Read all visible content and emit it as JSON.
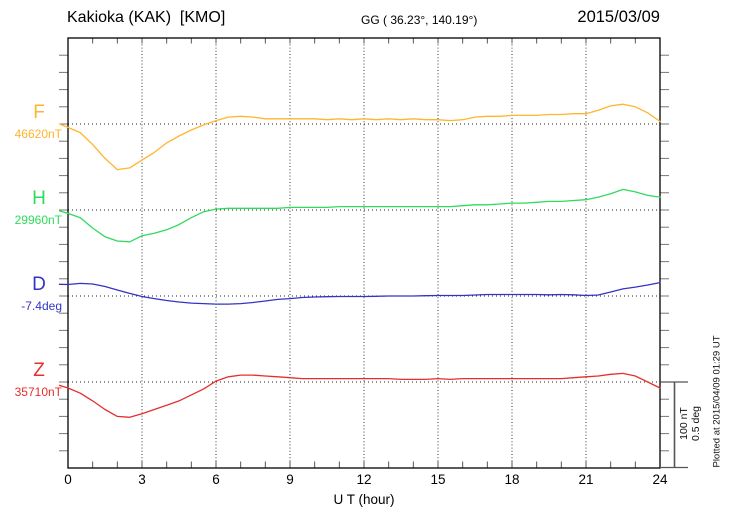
{
  "chart_data": {
    "type": "line",
    "title": "Kakioka (KAK)  [KMO]",
    "subtitle": "GG ( 36.23°, 140.19°)",
    "date": "2015/03/09",
    "xlabel": "U T (hour)",
    "x_unit": "hour",
    "x_range": [
      0,
      24
    ],
    "x_ticks": [
      0,
      3,
      6,
      9,
      12,
      15,
      18,
      21,
      24
    ],
    "grid_hours": [
      3,
      6,
      9,
      12,
      15,
      18,
      21
    ],
    "sample_step_hours": 0.5,
    "grid": "dotted",
    "legend_position": "left",
    "scale_bar": {
      "label_nt": "100 nT",
      "label_deg": "0.5 deg",
      "nT_per_division": 100,
      "deg_per_division": 0.5
    },
    "plotted_at": "Plotted at 2015/04/09 01:29 UT",
    "series": [
      {
        "name": "F",
        "value_label": "46620nT",
        "baseline": 46620,
        "unit": "nT",
        "color": "#FFB52E",
        "lead_offset": 0,
        "offsets": [
          -4,
          -10,
          -24,
          -40,
          -53,
          -51,
          -42,
          -33,
          -22,
          -14,
          -7,
          -1,
          4,
          8,
          9,
          8,
          6,
          6,
          6,
          6,
          6,
          5,
          6,
          5,
          6,
          5,
          6,
          5,
          6,
          5,
          5,
          4,
          5,
          8,
          9,
          9,
          10,
          10,
          10,
          11,
          11,
          12,
          12,
          16,
          21,
          23,
          20,
          13,
          3
        ]
      },
      {
        "name": "H",
        "value_label": "29960nT",
        "baseline": 29960,
        "unit": "nT",
        "color": "#2EDC5C",
        "lead_offset": -1,
        "offsets": [
          -4,
          -9,
          -21,
          -31,
          -36,
          -37,
          -30,
          -27,
          -23,
          -17,
          -9,
          -2,
          1,
          2,
          2,
          2,
          2,
          2,
          3,
          3,
          3,
          3,
          4,
          4,
          4,
          4,
          4,
          4,
          4,
          4,
          4,
          4,
          5,
          6,
          6,
          7,
          8,
          8,
          9,
          10,
          10,
          11,
          12,
          15,
          19,
          24,
          21,
          17,
          15
        ]
      },
      {
        "name": "D",
        "value_label": "-7.4deg",
        "baseline": -7.4,
        "unit": "deg",
        "color": "#3434C4",
        "lead_offset": 0.068,
        "offsets": [
          0.067,
          0.073,
          0.07,
          0.055,
          0.035,
          0.015,
          -0.003,
          -0.015,
          -0.026,
          -0.035,
          -0.041,
          -0.044,
          -0.047,
          -0.047,
          -0.044,
          -0.038,
          -0.029,
          -0.02,
          -0.015,
          -0.009,
          -0.006,
          -0.004,
          -0.003,
          -0.003,
          -0.003,
          -0.002,
          0.0,
          0.0,
          0.0,
          0.002,
          0.003,
          0.003,
          0.003,
          0.006,
          0.009,
          0.009,
          0.009,
          0.009,
          0.009,
          0.007,
          0.009,
          0.007,
          0.003,
          0.006,
          0.023,
          0.041,
          0.052,
          0.064,
          0.078
        ]
      },
      {
        "name": "Z",
        "value_label": "35710nT",
        "baseline": 35710,
        "unit": "nT",
        "color": "#E62E2E",
        "lead_offset": -4,
        "offsets": [
          -7,
          -13,
          -22,
          -32,
          -40,
          -41,
          -37,
          -32,
          -27,
          -22,
          -15,
          -8,
          1,
          6,
          8,
          8,
          7,
          6,
          5,
          4,
          4,
          4,
          4,
          4,
          4,
          4,
          4,
          3,
          3,
          3,
          4,
          3,
          4,
          4,
          4,
          4,
          4,
          4,
          4,
          4,
          4,
          5,
          6,
          7,
          9,
          10,
          7,
          0,
          -7
        ]
      }
    ]
  }
}
